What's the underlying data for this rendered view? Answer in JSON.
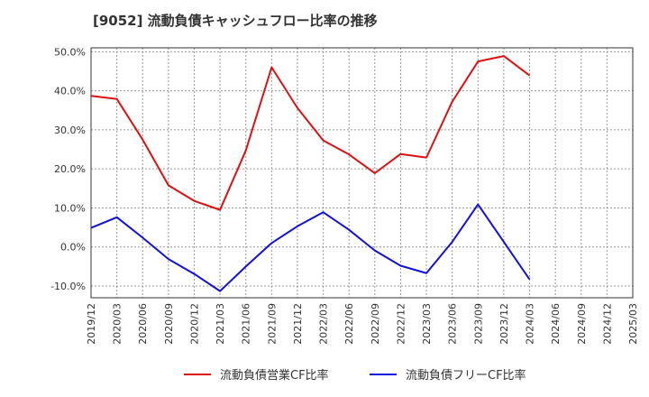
{
  "chart_data": {
    "type": "line",
    "title": "[9052]  流動負債キャッシュフロー比率の推移",
    "x": [
      "2019/12",
      "2020/03",
      "2020/06",
      "2020/09",
      "2020/12",
      "2021/03",
      "2021/06",
      "2021/09",
      "2021/12",
      "2022/03",
      "2022/06",
      "2022/09",
      "2022/12",
      "2023/03",
      "2023/06",
      "2023/09",
      "2023/12",
      "2024/03",
      "2024/06",
      "2024/09",
      "2024/12",
      "2025/03"
    ],
    "y_ticks": [
      "-10.0%",
      "0.0%",
      "10.0%",
      "20.0%",
      "30.0%",
      "40.0%",
      "50.0%"
    ],
    "ylim": [
      -13,
      51
    ],
    "grid": true,
    "legend_position": "bottom",
    "series": [
      {
        "name": "流動負債営業CF比率",
        "color": "#dd1111",
        "values": [
          38.7,
          37.9,
          27.5,
          15.8,
          11.8,
          9.5,
          24.7,
          46.0,
          35.6,
          27.3,
          23.7,
          18.9,
          23.8,
          22.9,
          37.2,
          47.5,
          48.9,
          43.9,
          null,
          null,
          null,
          null
        ]
      },
      {
        "name": "流動負債フリーCF比率",
        "color": "#1111dd",
        "values": [
          4.9,
          7.6,
          2.4,
          -3.1,
          -6.9,
          -11.3,
          -5.0,
          1.0,
          5.3,
          8.9,
          4.4,
          -0.9,
          -4.8,
          -6.7,
          1.3,
          10.9,
          1.3,
          -8.3,
          null,
          null,
          null,
          null
        ]
      }
    ]
  }
}
